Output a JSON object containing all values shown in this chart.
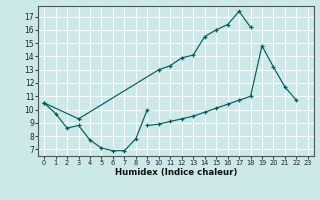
{
  "xlabel": "Humidex (Indice chaleur)",
  "bg_color": "#cce8e8",
  "grid_color": "#ffffff",
  "line_color": "#005f5f",
  "xlim": [
    -0.5,
    23.5
  ],
  "ylim": [
    6.5,
    17.8
  ],
  "xticks": [
    0,
    1,
    2,
    3,
    4,
    5,
    6,
    7,
    8,
    9,
    10,
    11,
    12,
    13,
    14,
    15,
    16,
    17,
    18,
    19,
    20,
    21,
    22,
    23
  ],
  "yticks": [
    7,
    8,
    9,
    10,
    11,
    12,
    13,
    14,
    15,
    16,
    17
  ],
  "curve1_x": [
    0,
    1,
    2,
    3,
    4,
    5,
    6,
    7,
    8,
    9
  ],
  "curve1_y": [
    10.5,
    9.7,
    8.6,
    8.8,
    7.7,
    7.1,
    6.9,
    6.9,
    7.8,
    10.0
  ],
  "curve2_x": [
    0,
    3,
    10,
    11,
    12,
    13,
    14,
    15,
    16,
    17,
    18
  ],
  "curve2_y": [
    10.5,
    9.3,
    13.0,
    13.3,
    13.9,
    14.1,
    15.5,
    16.0,
    16.4,
    17.4,
    16.2
  ],
  "curve3_x": [
    9,
    10,
    11,
    12,
    13,
    14,
    15,
    16,
    17,
    18,
    19,
    20,
    21,
    22
  ],
  "curve3_y": [
    8.8,
    8.9,
    9.1,
    9.3,
    9.5,
    9.8,
    10.1,
    10.4,
    10.7,
    11.0,
    14.8,
    13.2,
    11.7,
    10.7
  ]
}
